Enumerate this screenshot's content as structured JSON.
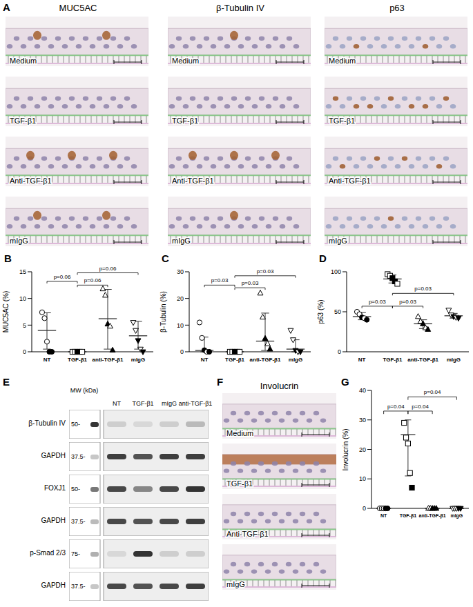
{
  "panels": {
    "A": {
      "label": "A",
      "columns": [
        "MUC5AC",
        "β-Tubulin IV",
        "p63"
      ],
      "rows": [
        "Medium",
        "TGF-β1",
        "Anti-TGF-β1",
        "mIgG"
      ]
    },
    "E": {
      "label": "E",
      "lanes": [
        "MW (kDa)",
        "NT",
        "TGF-β1",
        "mIgG",
        "anti-TGF-β1"
      ],
      "rows": [
        {
          "name": "β-Tubulin IV",
          "mw": "50-",
          "intensity": [
            0.9,
            0.15,
            0.1,
            0.15,
            0.25
          ]
        },
        {
          "name": "GAPDH",
          "mw": "37.5-",
          "intensity": [
            0.25,
            0.85,
            0.75,
            0.85,
            0.85
          ]
        },
        {
          "name": "FOXJ1",
          "mw": "50-",
          "intensity": [
            0.6,
            0.8,
            0.5,
            0.8,
            0.9
          ]
        },
        {
          "name": "GAPDH",
          "mw": "37.5-",
          "intensity": [
            0.3,
            0.8,
            0.75,
            0.8,
            0.85
          ]
        },
        {
          "name": "p-Smad 2/3",
          "mw": "75-",
          "intensity": [
            0.35,
            0.1,
            0.9,
            0.15,
            0.15
          ]
        },
        {
          "name": "GAPDH",
          "mw": "37.5-",
          "intensity": [
            0.25,
            0.8,
            0.75,
            0.8,
            0.85
          ]
        }
      ]
    },
    "F": {
      "label": "F",
      "title": "Involucrin",
      "rows": [
        "Medium",
        "TGF-β1",
        "Anti-TGF-β1",
        "mIgG"
      ]
    }
  },
  "chart_data": [
    {
      "label": "B",
      "type": "scatter",
      "categories": [
        "NT",
        "TGF-β1",
        "anti-TGF-β1",
        "mIgG"
      ],
      "y_label": "MUC5AC (%)",
      "ylim": [
        0,
        15
      ],
      "yticks": [
        0,
        5,
        10,
        15
      ],
      "groups": [
        {
          "marker": "circle",
          "values": [
            7.4,
            6.3,
            1.9,
            0,
            0
          ],
          "fill": [
            "open",
            "open",
            "open",
            "filled",
            "filled"
          ],
          "center": 4,
          "error": [
            0.5,
            7.3
          ]
        },
        {
          "marker": "square",
          "values": [
            0,
            0,
            0,
            0,
            0
          ],
          "fill": [
            "open",
            "open",
            "filled",
            "filled",
            "open"
          ],
          "center": 0,
          "error": [
            0,
            0
          ]
        },
        {
          "marker": "triangle-up",
          "values": [
            11.8,
            10.6,
            5.2,
            4.8,
            0.3
          ],
          "fill": [
            "open",
            "open",
            "filled",
            "open",
            "filled"
          ],
          "center": 6.2,
          "error": [
            0.5,
            11.7
          ]
        },
        {
          "marker": "triangle-down",
          "values": [
            5.5,
            4,
            2.1,
            0.5,
            0
          ],
          "fill": [
            "open",
            "open",
            "filled",
            "open",
            "filled"
          ],
          "center": 3,
          "error": [
            0.5,
            5.7
          ]
        }
      ],
      "annotations": [
        {
          "from": "NT",
          "to": "TGF-β1",
          "y": 13.2,
          "label": "p=0.06"
        },
        {
          "from": "TGF-β1",
          "to": "anti-TGF-β1",
          "y": 12.5,
          "label": "p=0.06"
        },
        {
          "from": "TGF-β1",
          "to": "mIgG",
          "y": 14.8,
          "label": "p=0.06"
        }
      ]
    },
    {
      "label": "C",
      "type": "scatter",
      "categories": [
        "NT",
        "TGF-β1",
        "anti-TGF-β1",
        "mIgG"
      ],
      "y_label": "β-Tubulin (%)",
      "ylim": [
        0,
        30
      ],
      "yticks": [
        0,
        10,
        20,
        30
      ],
      "groups": [
        {
          "marker": "circle",
          "values": [
            11,
            5.2,
            0.6,
            0,
            0
          ],
          "fill": [
            "open",
            "open",
            "filled",
            "open",
            "filled"
          ],
          "center": 0.5,
          "error": [
            0,
            5.5
          ]
        },
        {
          "marker": "square",
          "values": [
            0,
            0,
            0,
            0,
            0
          ],
          "fill": [
            "open",
            "open",
            "filled",
            "filled",
            "open"
          ],
          "center": 0,
          "error": [
            0,
            0
          ]
        },
        {
          "marker": "triangle-up",
          "values": [
            22,
            13,
            5,
            3,
            1
          ],
          "fill": [
            "open",
            "open",
            "filled",
            "open",
            "filled"
          ],
          "center": 4,
          "error": [
            0.5,
            14.5
          ]
        },
        {
          "marker": "triangle-down",
          "values": [
            8,
            4.5,
            0.5,
            0,
            0
          ],
          "fill": [
            "open",
            "open",
            "filled",
            "open",
            "filled"
          ],
          "center": 1,
          "error": [
            0,
            4.5
          ]
        }
      ],
      "annotations": [
        {
          "from": "NT",
          "to": "TGF-β1",
          "y": 25,
          "label": "p=0.03"
        },
        {
          "from": "TGF-β1",
          "to": "anti-TGF-β1",
          "y": 24,
          "label": "p=0.03"
        },
        {
          "from": "TGF-β1",
          "to": "mIgG",
          "y": 28.5,
          "label": "p=0.03"
        }
      ]
    },
    {
      "label": "D",
      "type": "scatter",
      "categories": [
        "NT",
        "TGF-β1",
        "anti-TGF-β1",
        "mIgG"
      ],
      "y_label": "p63 (%)",
      "ylim": [
        0,
        100
      ],
      "yticks": [
        0,
        50,
        100
      ],
      "groups": [
        {
          "marker": "circle",
          "values": [
            50,
            47,
            43,
            42,
            40
          ],
          "fill": [
            "open",
            "open",
            "filled",
            "open",
            "filled"
          ],
          "center": 44,
          "error": [
            40,
            49
          ]
        },
        {
          "marker": "square",
          "values": [
            97,
            95,
            92,
            88,
            85
          ],
          "fill": [
            "open",
            "open",
            "filled",
            "filled",
            "open"
          ],
          "center": 91,
          "error": [
            86,
            96
          ]
        },
        {
          "marker": "triangle-up",
          "values": [
            44,
            38,
            35,
            30,
            28
          ],
          "fill": [
            "open",
            "open",
            "filled",
            "open",
            "filled"
          ],
          "center": 35,
          "error": [
            29,
            40
          ]
        },
        {
          "marker": "triangle-down",
          "values": [
            52,
            46,
            44,
            43,
            42
          ],
          "fill": [
            "open",
            "open",
            "filled",
            "open",
            "filled"
          ],
          "center": 45,
          "error": [
            42,
            48
          ]
        }
      ],
      "annotations": [
        {
          "from": "NT",
          "to": "TGF-β1",
          "y": 57,
          "label": "p=0.03"
        },
        {
          "from": "TGF-β1",
          "to": "anti-TGF-β1",
          "y": 57,
          "label": "p=0.03"
        },
        {
          "from": "TGF-β1",
          "to": "mIgG",
          "y": 73,
          "label": "p=0.03"
        }
      ]
    },
    {
      "label": "G",
      "type": "scatter",
      "categories": [
        "NT",
        "TGF-β1",
        "anti-TGF-β1",
        "mIgG"
      ],
      "y_label": "Involucrin (%)",
      "ylim": [
        0,
        40
      ],
      "yticks": [
        0,
        10,
        20,
        30,
        40
      ],
      "groups": [
        {
          "marker": "circle",
          "values": [
            0,
            0,
            0,
            0,
            0
          ],
          "fill": [
            "open",
            "open",
            "open",
            "filled",
            "filled"
          ],
          "center": 0,
          "error": [
            0,
            0
          ]
        },
        {
          "marker": "square",
          "values": [
            29,
            24,
            22,
            12,
            7
          ],
          "fill": [
            "open",
            "open",
            "open",
            "open",
            "filled"
          ],
          "center": 25,
          "error": [
            11,
            30
          ]
        },
        {
          "marker": "triangle-up",
          "values": [
            0,
            0,
            0,
            0,
            0
          ],
          "fill": [
            "open",
            "open",
            "filled",
            "filled",
            "filled"
          ],
          "center": 0,
          "error": [
            0,
            0
          ]
        },
        {
          "marker": "triangle-down",
          "values": [
            0,
            0,
            0,
            0,
            0
          ],
          "fill": [
            "open",
            "open",
            "open",
            "filled",
            "filled"
          ],
          "center": 0,
          "error": [
            0,
            0
          ]
        }
      ],
      "annotations": [
        {
          "from": "NT",
          "to": "TGF-β1",
          "y": 33,
          "label": "p=0.04"
        },
        {
          "from": "TGF-β1",
          "to": "anti-TGF-β1",
          "y": 33,
          "label": "p=0.04"
        },
        {
          "from": "TGF-β1",
          "to": "mIgG",
          "y": 37.8,
          "label": "p=0.04"
        }
      ]
    }
  ]
}
